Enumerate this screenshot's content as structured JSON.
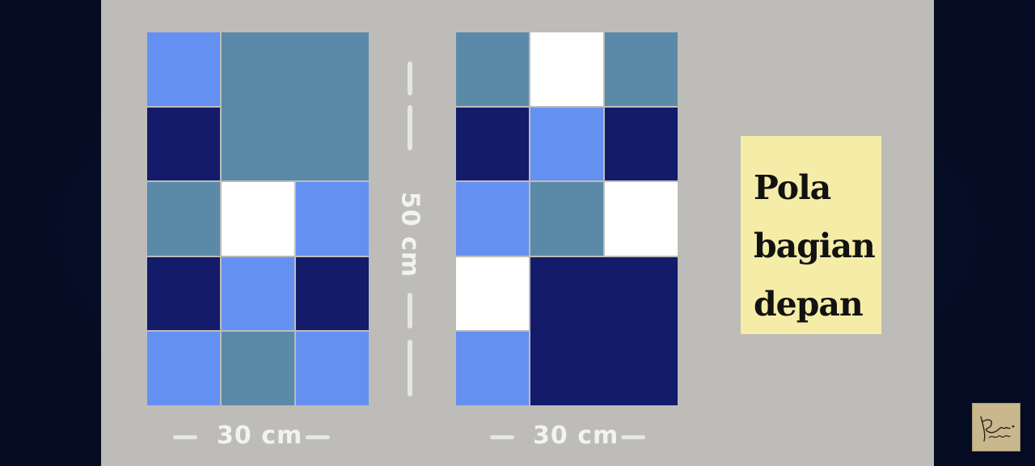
{
  "colors": {
    "light_blue": "#6490f2",
    "steel_blue": "#5a8aa8",
    "navy": "#131b6a",
    "white": "#ffffff",
    "board": "#bdbcb8",
    "note": "#f5eda7"
  },
  "patterns": [
    {
      "grid": {
        "cols": 3,
        "rows": 5
      },
      "cells": [
        {
          "col": 0,
          "row": 0,
          "w": 1,
          "h": 1,
          "color": "light_blue"
        },
        {
          "col": 1,
          "row": 0,
          "w": 2,
          "h": 2,
          "color": "steel_blue"
        },
        {
          "col": 0,
          "row": 1,
          "w": 1,
          "h": 1,
          "color": "navy"
        },
        {
          "col": 0,
          "row": 2,
          "w": 1,
          "h": 1,
          "color": "steel_blue"
        },
        {
          "col": 1,
          "row": 2,
          "w": 1,
          "h": 1,
          "color": "white"
        },
        {
          "col": 2,
          "row": 2,
          "w": 1,
          "h": 1,
          "color": "light_blue"
        },
        {
          "col": 0,
          "row": 3,
          "w": 1,
          "h": 1,
          "color": "navy"
        },
        {
          "col": 1,
          "row": 3,
          "w": 1,
          "h": 1,
          "color": "light_blue"
        },
        {
          "col": 2,
          "row": 3,
          "w": 1,
          "h": 1,
          "color": "navy"
        },
        {
          "col": 0,
          "row": 4,
          "w": 1,
          "h": 1,
          "color": "light_blue"
        },
        {
          "col": 1,
          "row": 4,
          "w": 1,
          "h": 1,
          "color": "steel_blue"
        },
        {
          "col": 2,
          "row": 4,
          "w": 1,
          "h": 1,
          "color": "light_blue"
        }
      ]
    },
    {
      "grid": {
        "cols": 3,
        "rows": 5
      },
      "cells": [
        {
          "col": 0,
          "row": 0,
          "w": 1,
          "h": 1,
          "color": "steel_blue"
        },
        {
          "col": 1,
          "row": 0,
          "w": 1,
          "h": 1,
          "color": "white"
        },
        {
          "col": 2,
          "row": 0,
          "w": 1,
          "h": 1,
          "color": "steel_blue"
        },
        {
          "col": 0,
          "row": 1,
          "w": 1,
          "h": 1,
          "color": "navy"
        },
        {
          "col": 1,
          "row": 1,
          "w": 1,
          "h": 1,
          "color": "light_blue"
        },
        {
          "col": 2,
          "row": 1,
          "w": 1,
          "h": 1,
          "color": "navy"
        },
        {
          "col": 0,
          "row": 2,
          "w": 1,
          "h": 1,
          "color": "light_blue"
        },
        {
          "col": 1,
          "row": 2,
          "w": 1,
          "h": 1,
          "color": "steel_blue"
        },
        {
          "col": 2,
          "row": 2,
          "w": 1,
          "h": 1,
          "color": "white"
        },
        {
          "col": 0,
          "row": 3,
          "w": 1,
          "h": 1,
          "color": "white"
        },
        {
          "col": 1,
          "row": 3,
          "w": 2,
          "h": 2,
          "color": "navy"
        },
        {
          "col": 0,
          "row": 4,
          "w": 1,
          "h": 1,
          "color": "light_blue"
        }
      ]
    }
  ],
  "dimensions": {
    "height": "50 cm",
    "width_left": "30 cm",
    "width_right": "30 cm"
  },
  "note": {
    "line1": "Pola",
    "line2": "bagian",
    "line3": "depan"
  },
  "watermark_icon": "signature-logo-icon"
}
